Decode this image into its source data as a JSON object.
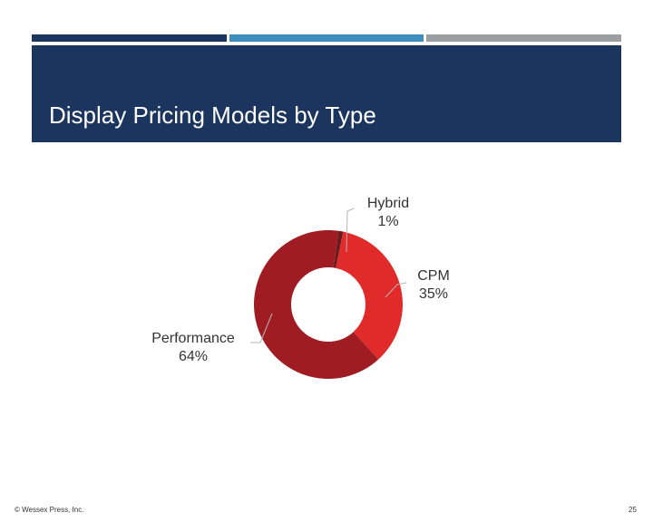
{
  "slide": {
    "title": "Display Pricing Models by Type",
    "copyright": "© Wessex Press, Inc.",
    "page_number": "25",
    "top_bar_colors": [
      "#1c355e",
      "#3e8dbf",
      "#9b9fa3"
    ],
    "title_band_color": "#1c355e"
  },
  "chart_data": {
    "type": "pie",
    "variant": "donut",
    "title": "",
    "series": [
      {
        "slices": [
          {
            "label": "Hybrid",
            "value": 1,
            "value_label": "1%",
            "color": "#6b1a1e"
          },
          {
            "label": "CPM",
            "value": 35,
            "value_label": "35%",
            "color": "#e12b2a"
          },
          {
            "label": "Performance",
            "value": 64,
            "value_label": "64%",
            "color": "#9f1d22"
          }
        ]
      }
    ],
    "legend": "none"
  }
}
